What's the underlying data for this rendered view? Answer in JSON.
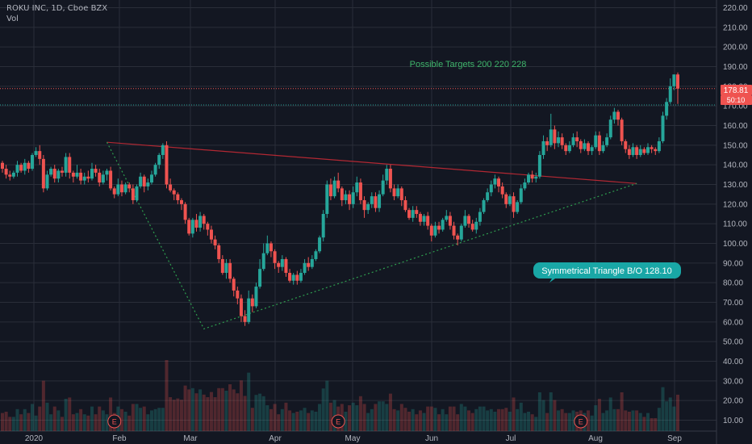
{
  "header": {
    "symbol_line": "ROKU INC, 1D, Cboe BZX",
    "volume_label": "Vol"
  },
  "colors": {
    "background": "#131722",
    "up": "#26a69a",
    "down": "#ef5350",
    "grid": "#2a2e39",
    "axis_text": "#b2b5be",
    "trendline_red": "#b22833",
    "trendline_green": "#2e9e4f",
    "annotation_text": "#3fb56b",
    "callout_bg": "#19a7a6"
  },
  "annotations": {
    "targets_text": "Possible Targets  200 220  228",
    "callout_text": "Symmetrical Triangle B/O 128.10"
  },
  "price_labels": {
    "last_price": "178.81",
    "countdown": "50:10"
  },
  "earnings_marker": "E",
  "chart_data": {
    "type": "candlestick",
    "ylim": [
      4,
      224
    ],
    "y_ticks": [
      "220.00",
      "210.00",
      "200.00",
      "190.00",
      "180.00",
      "170.00",
      "160.00",
      "150.00",
      "140.00",
      "130.00",
      "120.00",
      "110.00",
      "100.00",
      "90.00",
      "80.00",
      "70.00",
      "60.00",
      "50.00",
      "40.00",
      "30.00",
      "20.00",
      "10.00"
    ],
    "x_ticks": [
      "2020",
      "Feb",
      "Mar",
      "Apr",
      "May",
      "Jun",
      "Jul",
      "Aug",
      "Sep"
    ],
    "grid": true,
    "hlines": [
      {
        "value": 178.81,
        "style": "dotted",
        "color": "#ef5350"
      },
      {
        "value": 170.5,
        "style": "dotted",
        "color": "#26a69a"
      }
    ],
    "trendlines": [
      {
        "points": [
          [
            "2020-02-11",
            151.5
          ],
          [
            "2020-08-27",
            130.5
          ]
        ],
        "color": "red",
        "style": "solid"
      },
      {
        "points": [
          [
            "2020-02-11",
            151.5
          ],
          [
            "2020-03-18",
            56.5
          ],
          [
            "2020-08-27",
            130.5
          ]
        ],
        "color": "green",
        "style": "dotted"
      }
    ],
    "earnings_dates": [
      "2020-02-13",
      "2020-05-07",
      "2020-08-06"
    ],
    "candles": [
      [
        141,
        138,
        142,
        136
      ],
      [
        138,
        135,
        140,
        133
      ],
      [
        135,
        134,
        137,
        132
      ],
      [
        134,
        136,
        137,
        133
      ],
      [
        136,
        140,
        142,
        134
      ],
      [
        140,
        137,
        141,
        136
      ],
      [
        137,
        141,
        143,
        135
      ],
      [
        141,
        138,
        142,
        136
      ],
      [
        138,
        145,
        146,
        137
      ],
      [
        145,
        147,
        149,
        144
      ],
      [
        147,
        143,
        150,
        140
      ],
      [
        143,
        128,
        145,
        126
      ],
      [
        128,
        135,
        137,
        127
      ],
      [
        135,
        138,
        139,
        134
      ],
      [
        138,
        133,
        140,
        131
      ],
      [
        133,
        137,
        138,
        131
      ],
      [
        137,
        136,
        139,
        134
      ],
      [
        136,
        144,
        146,
        134
      ],
      [
        144,
        136,
        146,
        133
      ],
      [
        136,
        134,
        137,
        131
      ],
      [
        134,
        136,
        140,
        133
      ],
      [
        136,
        132,
        138,
        130
      ],
      [
        132,
        134,
        136,
        130
      ],
      [
        134,
        133,
        137,
        131
      ],
      [
        133,
        138,
        141,
        132
      ],
      [
        138,
        136,
        140,
        134
      ],
      [
        136,
        131,
        138,
        129
      ],
      [
        131,
        135,
        137,
        130
      ],
      [
        135,
        137,
        138,
        132
      ],
      [
        137,
        128,
        139,
        127
      ],
      [
        128,
        125,
        129,
        123
      ],
      [
        125,
        130,
        133,
        124
      ],
      [
        130,
        126,
        132,
        124
      ],
      [
        126,
        130,
        131,
        125
      ],
      [
        130,
        128,
        131,
        126
      ],
      [
        128,
        122,
        130,
        120
      ],
      [
        122,
        129,
        130,
        121
      ],
      [
        129,
        134,
        136,
        128
      ],
      [
        134,
        129,
        135,
        126
      ],
      [
        129,
        131,
        133,
        127
      ],
      [
        131,
        135,
        137,
        130
      ],
      [
        135,
        140,
        141,
        134
      ],
      [
        140,
        145,
        146,
        138
      ],
      [
        145,
        150,
        151,
        143
      ],
      [
        150,
        130,
        152,
        128
      ],
      [
        130,
        127,
        133,
        126
      ],
      [
        127,
        125,
        128,
        122
      ],
      [
        125,
        122,
        126,
        120
      ],
      [
        122,
        120,
        123,
        117
      ],
      [
        120,
        112,
        121,
        110
      ],
      [
        112,
        105,
        113,
        104
      ],
      [
        105,
        112,
        113,
        103
      ],
      [
        112,
        108,
        115,
        106
      ],
      [
        108,
        114,
        116,
        106
      ],
      [
        114,
        110,
        115,
        107
      ],
      [
        110,
        107,
        111,
        104
      ],
      [
        107,
        102,
        109,
        100
      ],
      [
        102,
        99,
        104,
        97
      ],
      [
        99,
        92,
        100,
        90
      ],
      [
        92,
        85,
        94,
        84
      ],
      [
        85,
        90,
        92,
        82
      ],
      [
        90,
        82,
        92,
        80
      ],
      [
        82,
        76,
        83,
        73
      ],
      [
        76,
        72,
        78,
        69
      ],
      [
        72,
        63,
        74,
        60
      ],
      [
        63,
        60,
        66,
        58
      ],
      [
        60,
        72,
        76,
        59
      ],
      [
        72,
        68,
        74,
        65
      ],
      [
        68,
        78,
        80,
        67
      ],
      [
        78,
        87,
        92,
        77
      ],
      [
        87,
        95,
        100,
        86
      ],
      [
        95,
        100,
        104,
        94
      ],
      [
        100,
        96,
        101,
        93
      ],
      [
        96,
        90,
        97,
        87
      ],
      [
        90,
        88,
        91,
        85
      ],
      [
        88,
        92,
        94,
        86
      ],
      [
        92,
        85,
        93,
        83
      ],
      [
        85,
        81,
        87,
        80
      ],
      [
        81,
        84,
        85,
        79
      ],
      [
        84,
        81,
        86,
        79
      ],
      [
        81,
        85,
        87,
        80
      ],
      [
        85,
        90,
        92,
        84
      ],
      [
        90,
        88,
        93,
        86
      ],
      [
        88,
        92,
        94,
        87
      ],
      [
        92,
        96,
        97,
        91
      ],
      [
        96,
        103,
        104,
        95
      ],
      [
        103,
        115,
        117,
        101
      ],
      [
        115,
        130,
        132,
        113
      ],
      [
        130,
        124,
        133,
        122
      ],
      [
        124,
        132,
        134,
        123
      ],
      [
        132,
        128,
        136,
        126
      ],
      [
        128,
        122,
        129,
        119
      ],
      [
        122,
        125,
        127,
        120
      ],
      [
        125,
        120,
        127,
        117
      ],
      [
        120,
        126,
        129,
        118
      ],
      [
        126,
        131,
        134,
        124
      ],
      [
        131,
        122,
        133,
        120
      ],
      [
        122,
        117,
        124,
        113
      ],
      [
        117,
        120,
        121,
        115
      ],
      [
        120,
        124,
        126,
        118
      ],
      [
        124,
        118,
        126,
        116
      ],
      [
        118,
        125,
        127,
        116
      ],
      [
        125,
        132,
        135,
        124
      ],
      [
        132,
        138,
        140,
        130
      ],
      [
        138,
        128,
        140,
        126
      ],
      [
        128,
        124,
        130,
        122
      ],
      [
        124,
        128,
        130,
        123
      ],
      [
        128,
        122,
        129,
        119
      ],
      [
        122,
        117,
        124,
        116
      ],
      [
        117,
        113,
        118,
        112
      ],
      [
        113,
        117,
        119,
        111
      ],
      [
        117,
        115,
        119,
        113
      ],
      [
        115,
        111,
        116,
        109
      ],
      [
        111,
        114,
        115,
        109
      ],
      [
        114,
        109,
        116,
        107
      ],
      [
        109,
        104,
        110,
        101
      ],
      [
        104,
        109,
        111,
        103
      ],
      [
        109,
        107,
        111,
        105
      ],
      [
        107,
        112,
        113,
        106
      ],
      [
        112,
        114,
        117,
        111
      ],
      [
        114,
        109,
        116,
        107
      ],
      [
        109,
        104,
        111,
        102
      ],
      [
        104,
        102,
        105,
        99
      ],
      [
        102,
        109,
        110,
        101
      ],
      [
        109,
        114,
        117,
        108
      ],
      [
        114,
        110,
        115,
        108
      ],
      [
        110,
        107,
        112,
        106
      ],
      [
        107,
        111,
        113,
        105
      ],
      [
        111,
        116,
        118,
        109
      ],
      [
        116,
        122,
        123,
        115
      ],
      [
        122,
        126,
        128,
        121
      ],
      [
        126,
        130,
        132,
        124
      ],
      [
        130,
        133,
        135,
        128
      ],
      [
        133,
        129,
        134,
        126
      ],
      [
        129,
        125,
        131,
        123
      ],
      [
        125,
        120,
        126,
        118
      ],
      [
        120,
        124,
        125,
        119
      ],
      [
        124,
        116,
        126,
        113
      ],
      [
        116,
        121,
        122,
        115
      ],
      [
        121,
        128,
        130,
        120
      ],
      [
        128,
        131,
        133,
        127
      ],
      [
        131,
        135,
        136,
        130
      ],
      [
        135,
        133,
        137,
        131
      ],
      [
        133,
        134,
        136,
        131
      ],
      [
        134,
        145,
        147,
        133
      ],
      [
        145,
        152,
        155,
        143
      ],
      [
        152,
        150,
        154,
        147
      ],
      [
        150,
        158,
        166,
        149
      ],
      [
        158,
        151,
        160,
        148
      ],
      [
        151,
        154,
        157,
        149
      ],
      [
        154,
        150,
        156,
        148
      ],
      [
        150,
        147,
        151,
        145
      ],
      [
        147,
        150,
        152,
        146
      ],
      [
        150,
        154,
        156,
        149
      ],
      [
        154,
        152,
        157,
        149
      ],
      [
        152,
        148,
        153,
        146
      ],
      [
        148,
        151,
        153,
        147
      ],
      [
        151,
        147,
        152,
        145
      ],
      [
        147,
        149,
        150,
        145
      ],
      [
        149,
        155,
        157,
        148
      ],
      [
        155,
        147,
        157,
        145
      ],
      [
        147,
        150,
        152,
        146
      ],
      [
        150,
        154,
        156,
        149
      ],
      [
        154,
        163,
        165,
        153
      ],
      [
        163,
        167,
        169,
        161
      ],
      [
        167,
        163,
        168,
        160
      ],
      [
        163,
        152,
        164,
        150
      ],
      [
        152,
        148,
        153,
        146
      ],
      [
        148,
        145,
        150,
        143
      ],
      [
        145,
        149,
        151,
        144
      ],
      [
        149,
        145,
        150,
        143
      ],
      [
        145,
        148,
        150,
        144
      ],
      [
        148,
        146,
        149,
        145
      ],
      [
        146,
        149,
        151,
        145
      ],
      [
        149,
        148,
        150,
        146
      ],
      [
        148,
        147,
        149,
        145
      ],
      [
        147,
        152,
        154,
        146
      ],
      [
        152,
        165,
        167,
        151
      ],
      [
        165,
        172,
        174,
        163
      ],
      [
        172,
        180,
        184,
        171
      ],
      [
        180,
        186,
        186,
        178
      ],
      [
        186,
        178.81,
        187,
        171
      ]
    ]
  }
}
